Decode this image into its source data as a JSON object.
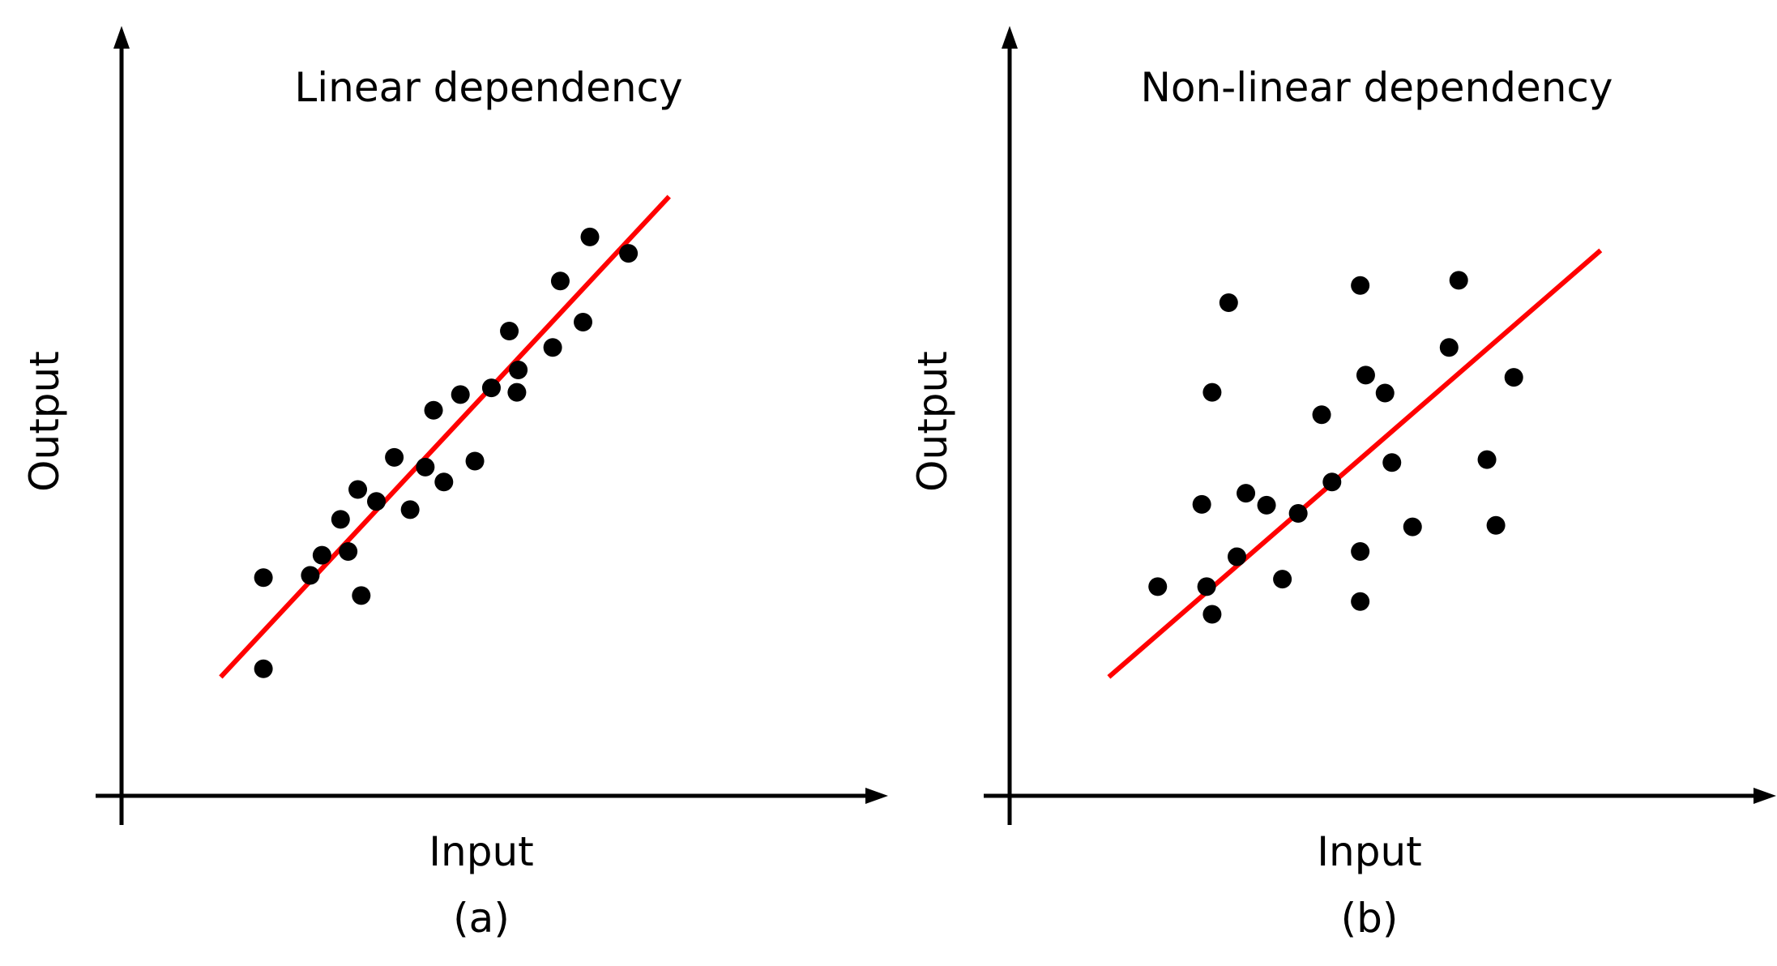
{
  "chart_data": [
    {
      "type": "scatter",
      "title": "Linear dependency",
      "xlabel": "Input",
      "ylabel": "Output",
      "caption": "(a)",
      "xlim": [
        0,
        100
      ],
      "ylim": [
        0,
        100
      ],
      "grid": false,
      "legend": "none",
      "axis_color": "#000000",
      "point_color": "#000000",
      "fit_line_color": "#ff0000",
      "points": [
        {
          "x": 20.6,
          "y": 17.0
        },
        {
          "x": 20.6,
          "y": 29.2
        },
        {
          "x": 27.4,
          "y": 29.5
        },
        {
          "x": 29.1,
          "y": 32.2
        },
        {
          "x": 32.9,
          "y": 32.7
        },
        {
          "x": 31.8,
          "y": 37.0
        },
        {
          "x": 34.3,
          "y": 41.0
        },
        {
          "x": 34.8,
          "y": 26.8
        },
        {
          "x": 37.0,
          "y": 39.4
        },
        {
          "x": 39.6,
          "y": 45.3
        },
        {
          "x": 41.9,
          "y": 38.3
        },
        {
          "x": 44.1,
          "y": 44.0
        },
        {
          "x": 46.8,
          "y": 42.0
        },
        {
          "x": 45.3,
          "y": 51.6
        },
        {
          "x": 49.2,
          "y": 53.7
        },
        {
          "x": 51.3,
          "y": 44.8
        },
        {
          "x": 53.7,
          "y": 54.6
        },
        {
          "x": 56.3,
          "y": 62.2
        },
        {
          "x": 57.4,
          "y": 54.0
        },
        {
          "x": 57.6,
          "y": 57.0
        },
        {
          "x": 62.6,
          "y": 60.0
        },
        {
          "x": 63.7,
          "y": 68.9
        },
        {
          "x": 67.0,
          "y": 63.4
        },
        {
          "x": 68.0,
          "y": 74.8
        },
        {
          "x": 73.6,
          "y": 72.6
        }
      ],
      "fit_line": {
        "x": [
          14.4,
          79.5
        ],
        "y": [
          15.9,
          80.2
        ]
      }
    },
    {
      "type": "scatter",
      "title": "Non-linear dependency",
      "xlabel": "Input",
      "ylabel": "Output",
      "caption": "(b)",
      "xlim": [
        0,
        100
      ],
      "ylim": [
        0,
        100
      ],
      "grid": false,
      "legend": "none",
      "axis_color": "#000000",
      "point_color": "#000000",
      "fit_line_color": "#ff0000",
      "points": [
        {
          "x": 21.5,
          "y": 28.0
        },
        {
          "x": 28.6,
          "y": 28.0
        },
        {
          "x": 29.4,
          "y": 24.3
        },
        {
          "x": 27.9,
          "y": 39.0
        },
        {
          "x": 29.4,
          "y": 54.0
        },
        {
          "x": 31.8,
          "y": 66.0
        },
        {
          "x": 33.0,
          "y": 32.0
        },
        {
          "x": 34.3,
          "y": 40.5
        },
        {
          "x": 37.3,
          "y": 38.9
        },
        {
          "x": 39.6,
          "y": 29.0
        },
        {
          "x": 41.9,
          "y": 37.8
        },
        {
          "x": 45.3,
          "y": 51.0
        },
        {
          "x": 46.8,
          "y": 42.0
        },
        {
          "x": 50.9,
          "y": 26.0
        },
        {
          "x": 50.9,
          "y": 32.7
        },
        {
          "x": 50.9,
          "y": 68.3
        },
        {
          "x": 51.7,
          "y": 56.3
        },
        {
          "x": 54.5,
          "y": 53.9
        },
        {
          "x": 55.5,
          "y": 44.6
        },
        {
          "x": 58.5,
          "y": 36.0
        },
        {
          "x": 63.8,
          "y": 60.0
        },
        {
          "x": 65.2,
          "y": 69.0
        },
        {
          "x": 69.3,
          "y": 45.0
        },
        {
          "x": 70.6,
          "y": 36.2
        },
        {
          "x": 73.2,
          "y": 56.0
        }
      ],
      "fit_line": {
        "x": [
          14.4,
          85.8
        ],
        "y": [
          15.9,
          73.0
        ]
      }
    }
  ]
}
